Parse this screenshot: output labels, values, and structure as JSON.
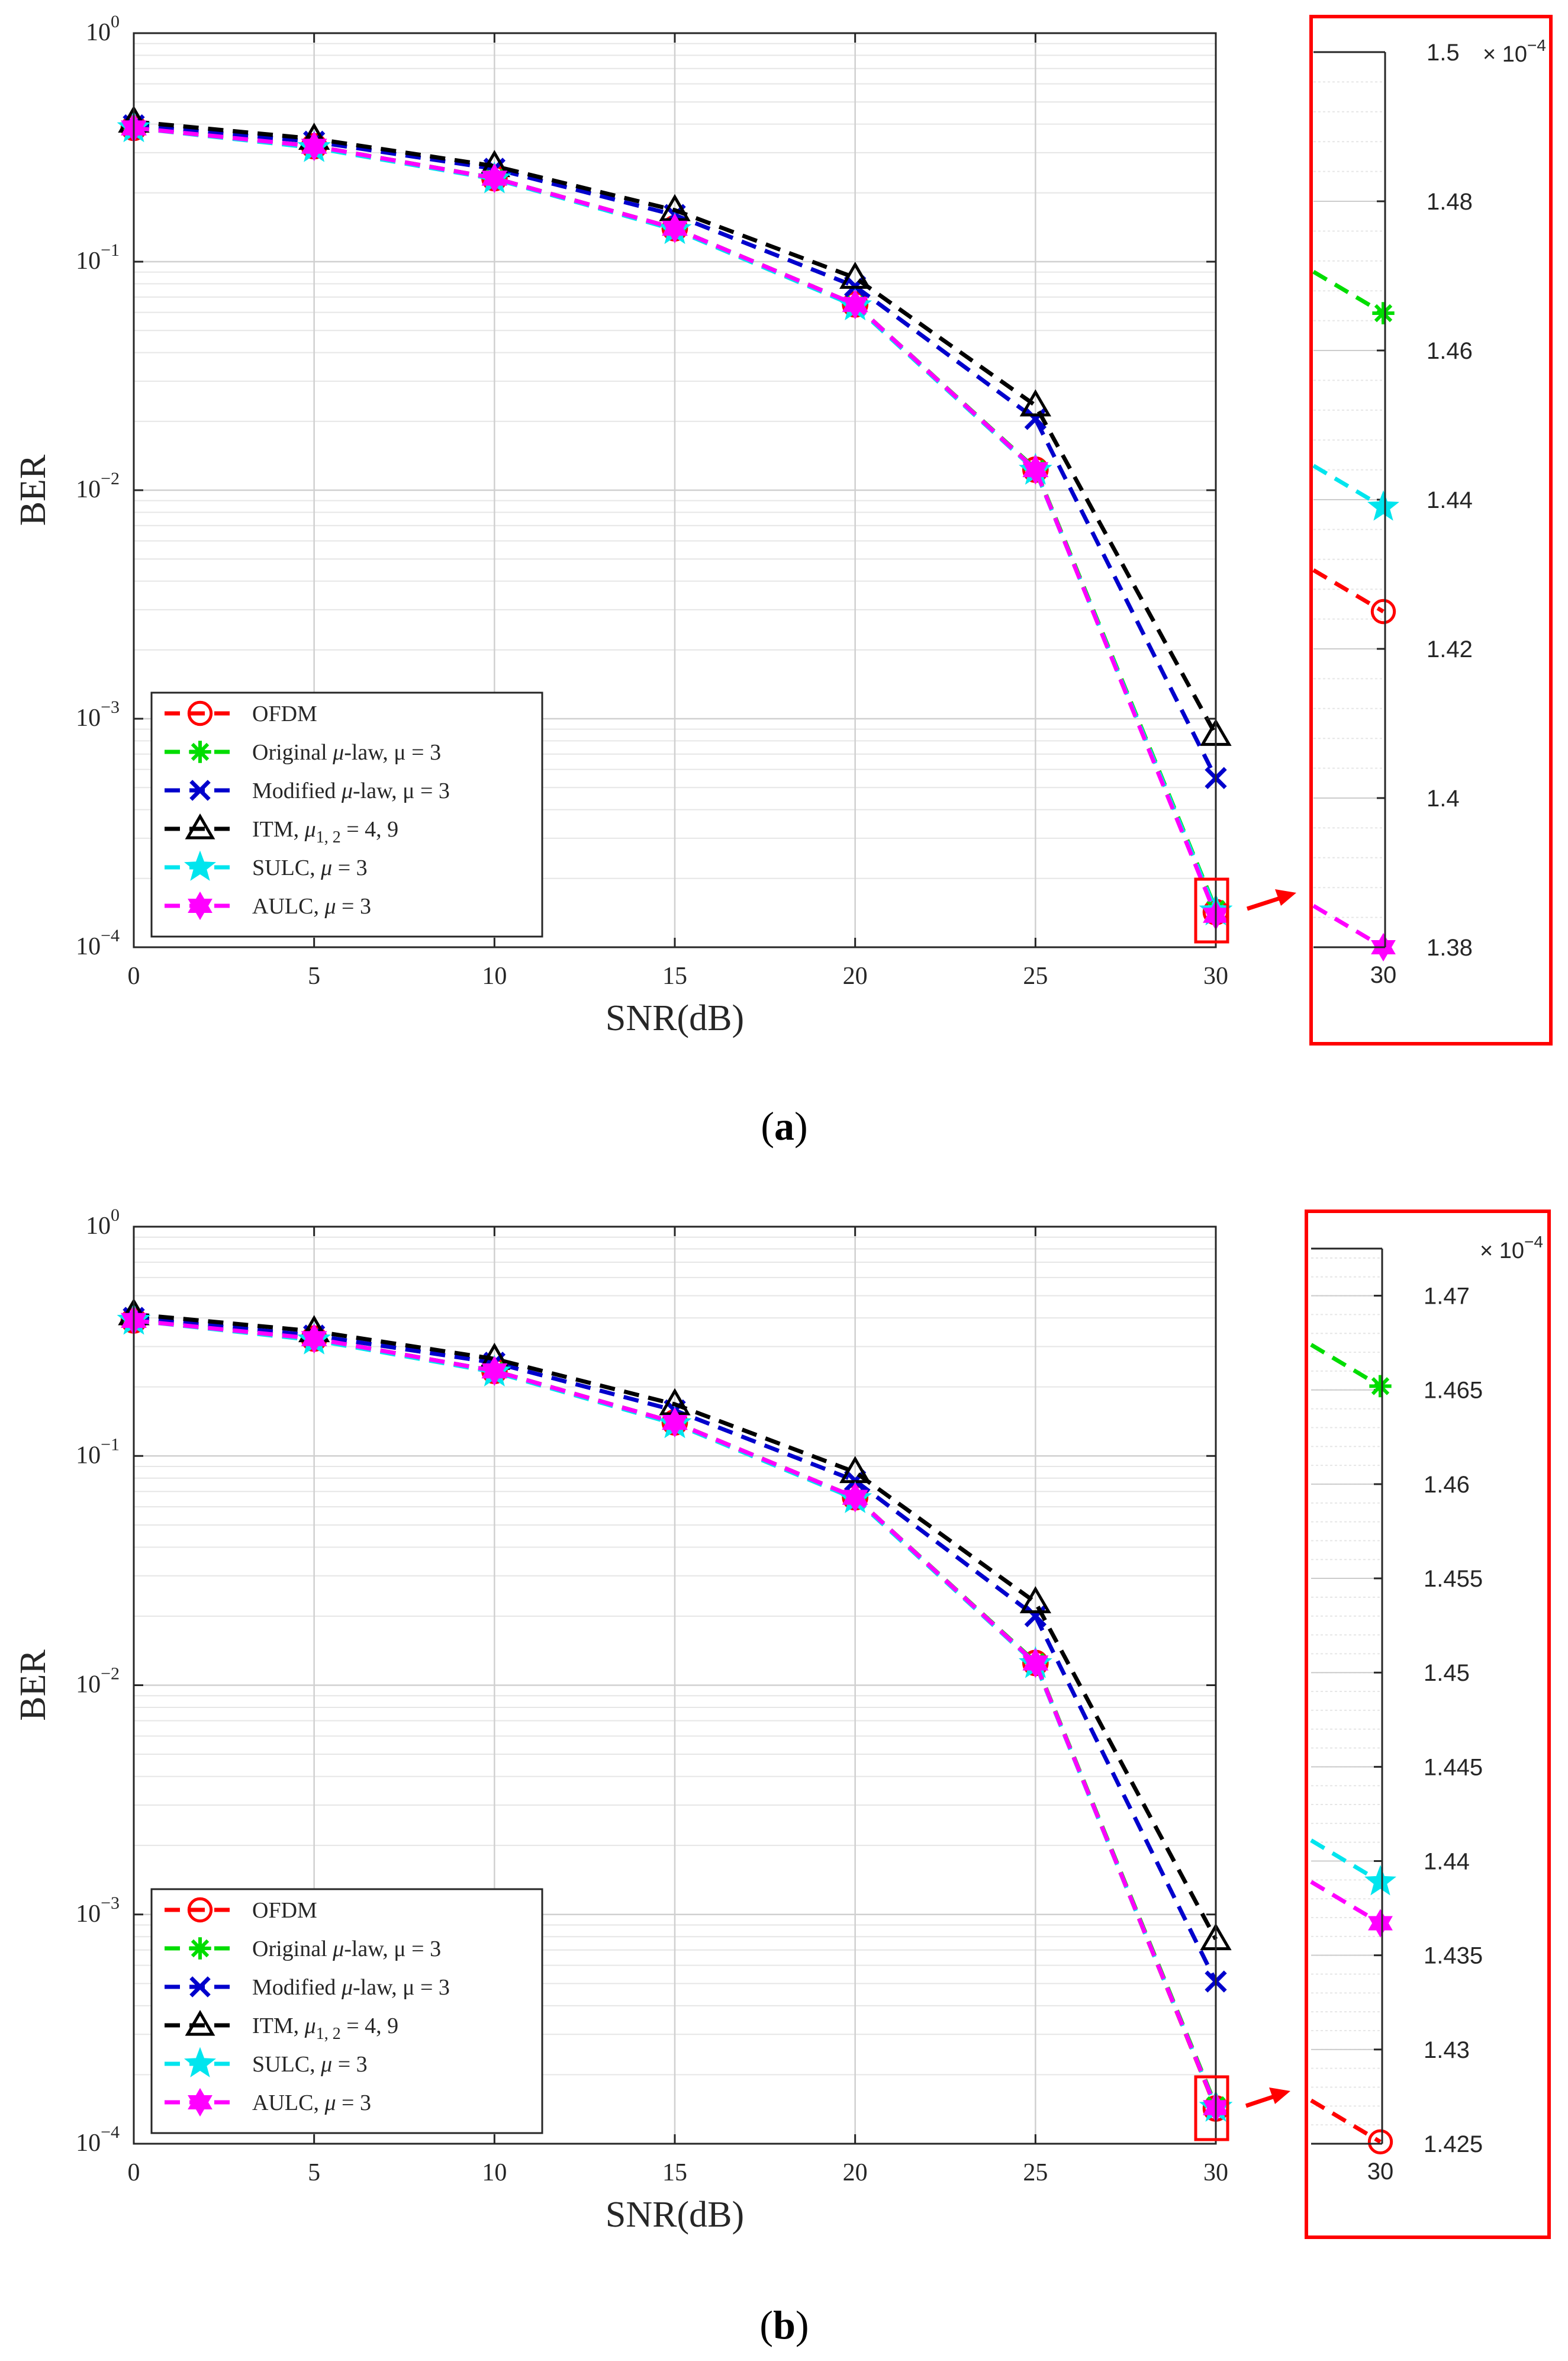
{
  "figure": {
    "panels": [
      {
        "label": "a",
        "main": {
          "xlabel": "SNR(dB)",
          "ylabel": "BER",
          "xticks": [
            "0",
            "5",
            "10",
            "15",
            "20",
            "25",
            "30"
          ],
          "yticks": [
            {
              "base": "10",
              "exp": "0"
            },
            {
              "base": "10",
              "exp": "−1"
            },
            {
              "base": "10",
              "exp": "−2"
            },
            {
              "base": "10",
              "exp": "−3"
            },
            {
              "base": "10",
              "exp": "−4"
            }
          ]
        },
        "inset": {
          "xtick": "30",
          "yticks": [
            "1.5",
            "1.48",
            "1.46",
            "1.44",
            "1.42",
            "1.4",
            "1.38"
          ],
          "multiplier": {
            "base": "× 10",
            "exp": "−4"
          }
        }
      },
      {
        "label": "b",
        "main": {
          "xlabel": "SNR(dB)",
          "ylabel": "BER",
          "xticks": [
            "0",
            "5",
            "10",
            "15",
            "20",
            "25",
            "30"
          ],
          "yticks": [
            {
              "base": "10",
              "exp": "0"
            },
            {
              "base": "10",
              "exp": "−1"
            },
            {
              "base": "10",
              "exp": "−2"
            },
            {
              "base": "10",
              "exp": "−3"
            },
            {
              "base": "10",
              "exp": "−4"
            }
          ]
        },
        "inset": {
          "xtick": "30",
          "yticks": [
            "1.47",
            "1.465",
            "1.46",
            "1.455",
            "1.45",
            "1.445",
            "1.44",
            "1.435",
            "1.43",
            "1.425"
          ],
          "multiplier": {
            "base": "× 10",
            "exp": "−4"
          }
        }
      }
    ],
    "legend": [
      {
        "pre": "OFDM",
        "mid": "",
        "post": "",
        "sub": ""
      },
      {
        "pre": "Original ",
        "mid": "μ",
        "post": "-law, μ = 3",
        "sub": ""
      },
      {
        "pre": "Modified ",
        "mid": "μ",
        "post": "-law, μ = 3",
        "sub": ""
      },
      {
        "pre": "ITM, ",
        "mid": "μ",
        "post": " = 4, 9",
        "sub": "1, 2"
      },
      {
        "pre": "SULC, ",
        "mid": "μ",
        "post": " = 3",
        "sub": ""
      },
      {
        "pre": "AULC, ",
        "mid": "μ",
        "post": " = 3",
        "sub": ""
      }
    ]
  },
  "chart_data": [
    {
      "type": "line",
      "panel": "a",
      "xlabel": "SNR(dB)",
      "ylabel": "BER",
      "yscale": "log",
      "xlim": [
        0,
        30
      ],
      "ylim": [
        0.0001,
        1
      ],
      "grid": true,
      "legend_position": "bottom-left",
      "x": [
        0,
        5,
        10,
        15,
        20,
        25,
        30
      ],
      "series": [
        {
          "name": "OFDM",
          "color": "#ff0000",
          "marker": "circle",
          "values": [
            0.385,
            0.32,
            0.232,
            0.14,
            0.065,
            0.0123,
            0.0001425
          ]
        },
        {
          "name": "Original μ-law, μ = 3",
          "color": "#00dd00",
          "marker": "asterisk",
          "values": [
            0.385,
            0.32,
            0.232,
            0.14,
            0.065,
            0.0124,
            0.0001465
          ]
        },
        {
          "name": "Modified μ-law, μ = 3",
          "color": "#0000cc",
          "marker": "x",
          "values": [
            0.395,
            0.335,
            0.255,
            0.16,
            0.078,
            0.0205,
            0.00055
          ]
        },
        {
          "name": "ITM, μ1, 2 = 4, 9",
          "color": "#000000",
          "marker": "triangle",
          "values": [
            0.41,
            0.345,
            0.262,
            0.168,
            0.085,
            0.0235,
            0.00085
          ]
        },
        {
          "name": "SULC, μ = 3",
          "color": "#00e5ee",
          "marker": "star",
          "values": [
            0.385,
            0.315,
            0.23,
            0.138,
            0.064,
            0.0122,
            0.0001439
          ]
        },
        {
          "name": "AULC, μ = 3",
          "color": "#ff00ff",
          "marker": "hexagram",
          "values": [
            0.385,
            0.32,
            0.232,
            0.14,
            0.065,
            0.0123,
            0.000138
          ]
        }
      ],
      "inset": {
        "x": 30,
        "ylim": [
          1.38,
          1.5
        ],
        "multiplier": "× 10−4",
        "values": {
          "OFDM": 1.425,
          "Original μ-law, μ = 3": 1.465,
          "SULC, μ = 3": 1.439,
          "AULC, μ = 3": 1.38
        }
      }
    },
    {
      "type": "line",
      "panel": "b",
      "xlabel": "SNR(dB)",
      "ylabel": "BER",
      "yscale": "log",
      "xlim": [
        0,
        30
      ],
      "ylim": [
        0.0001,
        1
      ],
      "grid": true,
      "legend_position": "bottom-left",
      "x": [
        0,
        5,
        10,
        15,
        20,
        25,
        30
      ],
      "series": [
        {
          "name": "OFDM",
          "color": "#ff0000",
          "marker": "circle",
          "values": [
            0.39,
            0.325,
            0.235,
            0.14,
            0.066,
            0.0125,
            0.0001425
          ]
        },
        {
          "name": "Original μ-law, μ = 3",
          "color": "#00dd00",
          "marker": "asterisk",
          "values": [
            0.39,
            0.325,
            0.235,
            0.14,
            0.066,
            0.0126,
            0.0001465
          ]
        },
        {
          "name": "Modified μ-law, μ = 3",
          "color": "#0000cc",
          "marker": "x",
          "values": [
            0.4,
            0.335,
            0.255,
            0.158,
            0.078,
            0.02,
            0.00051
          ]
        },
        {
          "name": "ITM, μ1, 2 = 4, 9",
          "color": "#000000",
          "marker": "triangle",
          "values": [
            0.415,
            0.35,
            0.265,
            0.168,
            0.085,
            0.023,
            0.00078
          ]
        },
        {
          "name": "SULC, μ = 3",
          "color": "#00e5ee",
          "marker": "star",
          "values": [
            0.39,
            0.32,
            0.232,
            0.138,
            0.065,
            0.0124,
            0.0001439
          ]
        },
        {
          "name": "AULC, μ = 3",
          "color": "#ff00ff",
          "marker": "hexagram",
          "values": [
            0.39,
            0.325,
            0.235,
            0.14,
            0.066,
            0.0125,
            0.0001437
          ]
        }
      ],
      "inset": {
        "x": 30,
        "ylim": [
          1.425,
          1.4725
        ],
        "multiplier": "× 10−4",
        "values": {
          "OFDM": 1.4251,
          "Original μ-law, μ = 3": 1.4652,
          "SULC, μ = 3": 1.4389,
          "AULC, μ = 3": 1.4367
        }
      }
    }
  ]
}
